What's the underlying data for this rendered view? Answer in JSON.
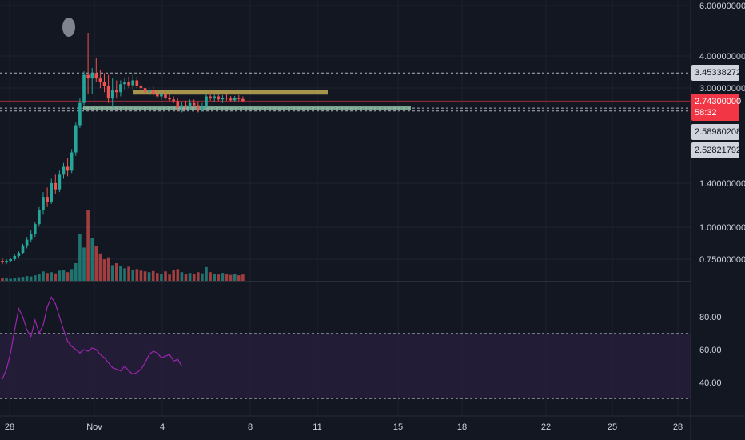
{
  "chart_data": {
    "type": "candlestick",
    "price_scale": "log",
    "price_ticks": [
      "6.00000000",
      "4.00000000",
      "3.00000000",
      "1.40000000",
      "1.00000000",
      "0.75000000"
    ],
    "x_ticks": [
      "28",
      "Nov",
      "4",
      "8",
      "11",
      "15",
      "18",
      "22",
      "25",
      "28"
    ],
    "candles": [
      [
        0.74,
        0.76,
        0.72,
        0.73
      ],
      [
        0.73,
        0.75,
        0.72,
        0.74
      ],
      [
        0.74,
        0.76,
        0.73,
        0.75
      ],
      [
        0.75,
        0.78,
        0.74,
        0.77
      ],
      [
        0.77,
        0.8,
        0.76,
        0.79
      ],
      [
        0.79,
        0.85,
        0.78,
        0.84
      ],
      [
        0.84,
        0.9,
        0.82,
        0.88
      ],
      [
        0.88,
        0.95,
        0.86,
        0.92
      ],
      [
        0.92,
        1.02,
        0.9,
        1.0
      ],
      [
        1.0,
        1.15,
        0.98,
        1.12
      ],
      [
        1.12,
        1.3,
        1.08,
        1.25
      ],
      [
        1.25,
        1.35,
        1.15,
        1.2
      ],
      [
        1.2,
        1.45,
        1.18,
        1.4
      ],
      [
        1.4,
        1.5,
        1.28,
        1.33
      ],
      [
        1.33,
        1.55,
        1.3,
        1.5
      ],
      [
        1.5,
        1.65,
        1.45,
        1.6
      ],
      [
        1.6,
        1.72,
        1.48,
        1.55
      ],
      [
        1.55,
        1.85,
        1.52,
        1.8
      ],
      [
        1.8,
        2.3,
        1.75,
        2.25
      ],
      [
        2.25,
        2.8,
        2.2,
        2.7
      ],
      [
        2.7,
        3.5,
        2.65,
        3.4
      ],
      [
        3.4,
        4.8,
        2.9,
        3.3
      ],
      [
        3.3,
        3.6,
        2.9,
        3.45
      ],
      [
        3.45,
        3.9,
        3.2,
        3.3
      ],
      [
        3.3,
        3.55,
        3.05,
        3.2
      ],
      [
        3.2,
        3.45,
        2.95,
        3.1
      ],
      [
        3.1,
        3.4,
        2.7,
        2.8
      ],
      [
        2.8,
        3.3,
        2.6,
        3.0
      ],
      [
        3.0,
        3.25,
        2.8,
        2.95
      ],
      [
        2.95,
        3.25,
        2.85,
        3.15
      ],
      [
        3.15,
        3.3,
        3.0,
        3.2
      ],
      [
        3.2,
        3.35,
        3.05,
        3.12
      ],
      [
        3.12,
        3.4,
        3.0,
        3.25
      ],
      [
        3.25,
        3.35,
        3.05,
        3.1
      ],
      [
        3.1,
        3.2,
        2.95,
        3.05
      ],
      [
        3.05,
        3.15,
        2.9,
        2.95
      ],
      [
        2.95,
        3.1,
        2.85,
        3.0
      ],
      [
        3.0,
        3.1,
        2.85,
        2.9
      ],
      [
        2.9,
        3.0,
        2.8,
        2.85
      ],
      [
        2.85,
        2.95,
        2.78,
        2.9
      ],
      [
        2.9,
        2.98,
        2.78,
        2.82
      ],
      [
        2.82,
        2.9,
        2.74,
        2.78
      ],
      [
        2.78,
        2.85,
        2.7,
        2.74
      ],
      [
        2.74,
        2.8,
        2.52,
        2.6
      ],
      [
        2.6,
        2.72,
        2.5,
        2.65
      ],
      [
        2.65,
        2.75,
        2.55,
        2.62
      ],
      [
        2.62,
        2.78,
        2.55,
        2.7
      ],
      [
        2.7,
        2.78,
        2.6,
        2.65
      ],
      [
        2.65,
        2.72,
        2.5,
        2.55
      ],
      [
        2.55,
        2.7,
        2.52,
        2.62
      ],
      [
        2.62,
        2.9,
        2.58,
        2.85
      ],
      [
        2.85,
        2.95,
        2.75,
        2.8
      ],
      [
        2.8,
        2.9,
        2.72,
        2.85
      ],
      [
        2.85,
        2.92,
        2.74,
        2.78
      ],
      [
        2.78,
        2.88,
        2.7,
        2.82
      ],
      [
        2.82,
        2.9,
        2.75,
        2.8
      ],
      [
        2.8,
        2.86,
        2.72,
        2.76
      ],
      [
        2.76,
        2.86,
        2.72,
        2.82
      ],
      [
        2.82,
        2.88,
        2.74,
        2.79
      ],
      [
        2.79,
        2.85,
        2.72,
        2.74
      ]
    ],
    "volume": [
      8,
      6,
      5,
      7,
      9,
      10,
      12,
      11,
      14,
      18,
      24,
      20,
      22,
      19,
      26,
      28,
      22,
      30,
      45,
      120,
      85,
      180,
      110,
      90,
      70,
      55,
      60,
      40,
      45,
      38,
      32,
      36,
      28,
      30,
      26,
      24,
      22,
      25,
      20,
      18,
      24,
      16,
      28,
      30,
      22,
      18,
      20,
      17,
      22,
      19,
      35,
      22,
      18,
      16,
      20,
      17,
      15,
      18,
      14,
      16
    ],
    "rsi": [
      42,
      48,
      58,
      72,
      85,
      80,
      72,
      68,
      78,
      70,
      75,
      86,
      92,
      88,
      80,
      72,
      65,
      62,
      60,
      58,
      60,
      59,
      61,
      60,
      57,
      55,
      52,
      49,
      48,
      47,
      50,
      47,
      45,
      46,
      48,
      52,
      57,
      59,
      58,
      55,
      56,
      57,
      53,
      54,
      50
    ],
    "rsi_ticks": [
      "80.00",
      "60.00",
      "40.00"
    ],
    "rsi_bands": [
      70,
      30
    ],
    "horizontal_levels": [
      {
        "label": "3.45338272",
        "price": 3.45338272
      },
      {
        "label": "2.58980208",
        "price": 2.58980208
      },
      {
        "label": "2.52821792",
        "price": 2.52821792
      }
    ],
    "current_price": {
      "label": "2.74300000",
      "countdown": "58:32",
      "price": 2.743
    },
    "resistance_zone_price": 2.95,
    "support_zone_price": 2.6,
    "colors": {
      "up": "#26a69a",
      "down": "#ef5350",
      "bg": "#131722",
      "grid": "#1f2330",
      "rsi_line": "#9c27b0",
      "rsi_fill": "#2a1f3d",
      "resistance": "#c9b458",
      "support": "#8fc9a6"
    }
  }
}
